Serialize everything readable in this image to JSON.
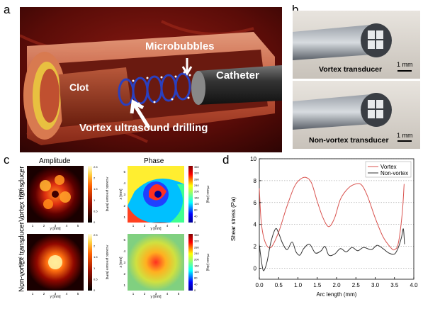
{
  "panels": {
    "a": {
      "letter": "a",
      "labels": {
        "clot": "Clot",
        "microbubbles": "Microbubbles",
        "catheter": "Catheter",
        "drilling": "Vortex ultrasound drilling"
      }
    },
    "b": {
      "letter": "b",
      "top_label": "Vortex transducer",
      "bottom_label": "Non-vortex transducer",
      "scale_top": "1 mm",
      "scale_bottom": "1 mm"
    },
    "c": {
      "letter": "c",
      "col_amplitude": "Amplitude",
      "col_phase": "Phase",
      "row_vortex": "Vortex transducer",
      "row_nonvortex": "Non-vortex transducer",
      "y_axis_label": "x [mm]",
      "x_axis_label": "y [mm]",
      "amp_cbar_label": "Acoustic pressure [MPa]",
      "phase_cbar_label": "Phase [deg]",
      "amp_cbar_ticks": [
        "2.5",
        "2",
        "1.5",
        "1",
        "0.5",
        "0"
      ],
      "phase_cbar_ticks": [
        "360",
        "320",
        "280",
        "240",
        "200",
        "160",
        "120",
        "80",
        "40",
        "0"
      ],
      "axis_ticks": [
        "1",
        "2",
        "3",
        "4",
        "5"
      ]
    },
    "d": {
      "letter": "d"
    }
  },
  "chart_data": {
    "type": "line",
    "title": "",
    "xlabel": "Arc length (mm)",
    "ylabel": "Shear stress (Pa)",
    "xlim": [
      0,
      4
    ],
    "ylim": [
      -1,
      10
    ],
    "xticks": [
      "0.0",
      "0.5",
      "1.0",
      "1.5",
      "2.0",
      "2.5",
      "3.0",
      "3.5",
      "4.0"
    ],
    "yticks": [
      "0",
      "2",
      "4",
      "6",
      "8",
      "10"
    ],
    "grid": "horizontal-dotted",
    "legend": "top-right",
    "series": [
      {
        "name": "Vortex",
        "color": "#d9534f",
        "x": [
          0.0,
          0.05,
          0.15,
          0.3,
          0.5,
          0.7,
          0.9,
          1.05,
          1.2,
          1.35,
          1.5,
          1.65,
          1.8,
          1.95,
          2.1,
          2.3,
          2.5,
          2.65,
          2.8,
          3.0,
          3.2,
          3.4,
          3.5,
          3.6,
          3.7,
          3.75
        ],
        "y": [
          7.3,
          4.2,
          2.4,
          1.9,
          3.3,
          5.5,
          7.4,
          8.1,
          8.3,
          7.8,
          6.1,
          4.6,
          3.8,
          4.6,
          6.3,
          7.3,
          7.7,
          7.6,
          6.6,
          4.6,
          2.9,
          1.9,
          1.7,
          2.3,
          5.0,
          7.7
        ]
      },
      {
        "name": "Non-vortex",
        "color": "#333333",
        "x": [
          0.0,
          0.03,
          0.08,
          0.12,
          0.2,
          0.3,
          0.42,
          0.5,
          0.6,
          0.72,
          0.85,
          0.95,
          1.05,
          1.15,
          1.3,
          1.45,
          1.6,
          1.7,
          1.8,
          1.95,
          2.1,
          2.25,
          2.4,
          2.55,
          2.7,
          2.9,
          3.05,
          3.2,
          3.35,
          3.5,
          3.6,
          3.68,
          3.73,
          3.76
        ],
        "y": [
          2.2,
          1.3,
          0.1,
          -0.2,
          0.6,
          2.4,
          3.6,
          3.2,
          2.3,
          1.7,
          2.4,
          1.5,
          1.2,
          1.8,
          2.2,
          1.4,
          1.6,
          2.0,
          1.2,
          1.3,
          1.8,
          1.5,
          1.9,
          1.6,
          1.9,
          1.7,
          2.1,
          1.8,
          1.4,
          1.3,
          1.9,
          2.8,
          3.6,
          2.2
        ]
      }
    ]
  }
}
